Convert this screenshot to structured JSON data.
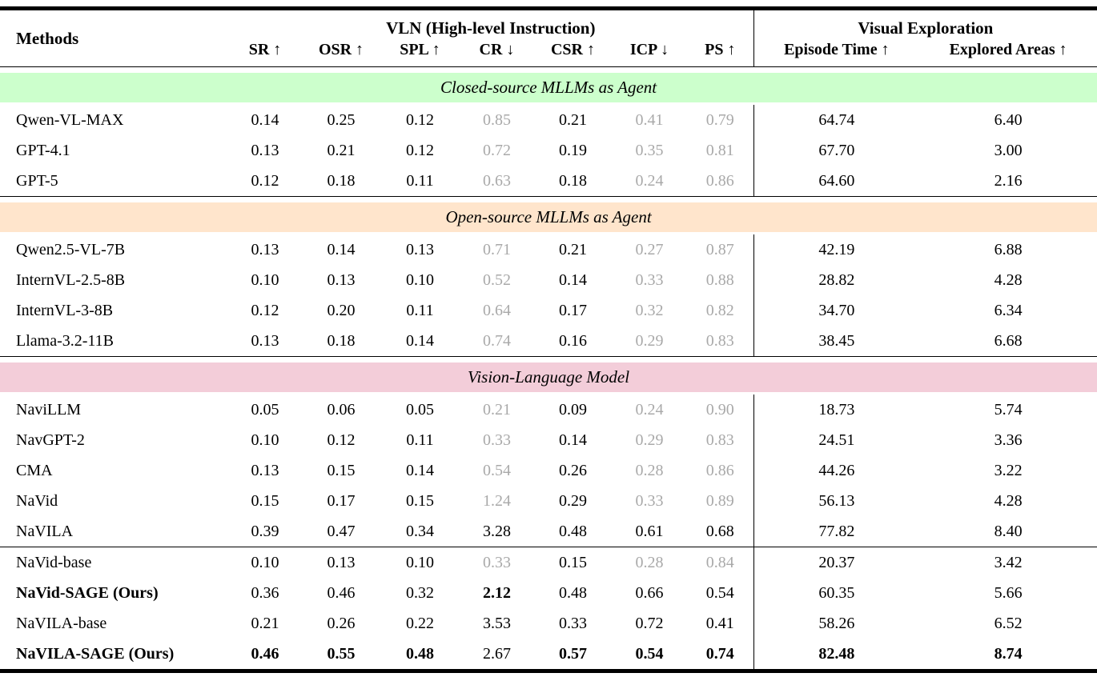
{
  "page": {
    "background": "#ffffff"
  },
  "colors": {
    "muted_value_text": "#a9a9a9",
    "closed_source_banner": "#ccffcc",
    "open_source_banner": "#ffe5cc",
    "vlm_banner": "#f3cdd9",
    "rule": "#000000"
  },
  "table": {
    "methods_header": "Methods",
    "groups": [
      "VLN (High-level Instruction)",
      "Visual Exploration"
    ],
    "columns": [
      {
        "id": "sr",
        "label": "SR ↑"
      },
      {
        "id": "osr",
        "label": "OSR ↑"
      },
      {
        "id": "spl",
        "label": "SPL ↑"
      },
      {
        "id": "cr",
        "label": "CR ↓"
      },
      {
        "id": "csr",
        "label": "CSR ↑"
      },
      {
        "id": "icp",
        "label": "ICP ↓"
      },
      {
        "id": "ps",
        "label": "PS ↑"
      },
      {
        "id": "episode-time",
        "label": "Episode Time ↑"
      },
      {
        "id": "explored-areas",
        "label": "Explored Areas ↑"
      }
    ],
    "sections": [
      {
        "id": "closed-source-mllms",
        "banner": {
          "label": "Closed-source MLLMs as Agent",
          "bg": "#ccffcc"
        },
        "rows": [
          {
            "method": "Qwen-VL-MAX",
            "method_bold": false,
            "values": [
              "0.14",
              "0.25",
              "0.12",
              "0.85",
              "0.21",
              "0.41",
              "0.79",
              "64.74",
              "6.40"
            ],
            "styles": [
              "n",
              "n",
              "n",
              "g",
              "n",
              "g",
              "g",
              "n",
              "n"
            ]
          },
          {
            "method": "GPT-4.1",
            "method_bold": false,
            "values": [
              "0.13",
              "0.21",
              "0.12",
              "0.72",
              "0.19",
              "0.35",
              "0.81",
              "67.70",
              "3.00"
            ],
            "styles": [
              "n",
              "n",
              "n",
              "g",
              "n",
              "g",
              "g",
              "n",
              "n"
            ]
          },
          {
            "method": "GPT-5",
            "method_bold": false,
            "values": [
              "0.12",
              "0.18",
              "0.11",
              "0.63",
              "0.18",
              "0.24",
              "0.86",
              "64.60",
              "2.16"
            ],
            "styles": [
              "n",
              "n",
              "n",
              "g",
              "n",
              "g",
              "g",
              "n",
              "n"
            ]
          }
        ]
      },
      {
        "id": "open-source-mllms",
        "banner": {
          "label": "Open-source MLLMs as Agent",
          "bg": "#ffe5cc"
        },
        "rows": [
          {
            "method": "Qwen2.5-VL-7B",
            "method_bold": false,
            "values": [
              "0.13",
              "0.14",
              "0.13",
              "0.71",
              "0.21",
              "0.27",
              "0.87",
              "42.19",
              "6.88"
            ],
            "styles": [
              "n",
              "n",
              "n",
              "g",
              "n",
              "g",
              "g",
              "n",
              "n"
            ]
          },
          {
            "method": "InternVL-2.5-8B",
            "method_bold": false,
            "values": [
              "0.10",
              "0.13",
              "0.10",
              "0.52",
              "0.14",
              "0.33",
              "0.88",
              "28.82",
              "4.28"
            ],
            "styles": [
              "n",
              "n",
              "n",
              "g",
              "n",
              "g",
              "g",
              "n",
              "n"
            ]
          },
          {
            "method": "InternVL-3-8B",
            "method_bold": false,
            "values": [
              "0.12",
              "0.20",
              "0.11",
              "0.64",
              "0.17",
              "0.32",
              "0.82",
              "34.70",
              "6.34"
            ],
            "styles": [
              "n",
              "n",
              "n",
              "g",
              "n",
              "g",
              "g",
              "n",
              "n"
            ]
          },
          {
            "method": "Llama-3.2-11B",
            "method_bold": false,
            "values": [
              "0.13",
              "0.18",
              "0.14",
              "0.74",
              "0.16",
              "0.29",
              "0.83",
              "38.45",
              "6.68"
            ],
            "styles": [
              "n",
              "n",
              "n",
              "g",
              "n",
              "g",
              "g",
              "n",
              "n"
            ]
          }
        ]
      },
      {
        "id": "vision-language-model",
        "banner": {
          "label": "Vision-Language Model",
          "bg": "#f3cdd9"
        },
        "rows": [
          {
            "method": "NaviLLM",
            "method_bold": false,
            "values": [
              "0.05",
              "0.06",
              "0.05",
              "0.21",
              "0.09",
              "0.24",
              "0.90",
              "18.73",
              "5.74"
            ],
            "styles": [
              "n",
              "n",
              "n",
              "g",
              "n",
              "g",
              "g",
              "n",
              "n"
            ]
          },
          {
            "method": "NavGPT-2",
            "method_bold": false,
            "values": [
              "0.10",
              "0.12",
              "0.11",
              "0.33",
              "0.14",
              "0.29",
              "0.83",
              "24.51",
              "3.36"
            ],
            "styles": [
              "n",
              "n",
              "n",
              "g",
              "n",
              "g",
              "g",
              "n",
              "n"
            ]
          },
          {
            "method": "CMA",
            "method_bold": false,
            "values": [
              "0.13",
              "0.15",
              "0.14",
              "0.54",
              "0.26",
              "0.28",
              "0.86",
              "44.26",
              "3.22"
            ],
            "styles": [
              "n",
              "n",
              "n",
              "g",
              "n",
              "g",
              "g",
              "n",
              "n"
            ]
          },
          {
            "method": "NaVid",
            "method_bold": false,
            "values": [
              "0.15",
              "0.17",
              "0.15",
              "1.24",
              "0.29",
              "0.33",
              "0.89",
              "56.13",
              "4.28"
            ],
            "styles": [
              "n",
              "n",
              "n",
              "g",
              "n",
              "g",
              "g",
              "n",
              "n"
            ]
          },
          {
            "method": "NaVILA",
            "method_bold": false,
            "values": [
              "0.39",
              "0.47",
              "0.34",
              "3.28",
              "0.48",
              "0.61",
              "0.68",
              "77.82",
              "8.40"
            ],
            "styles": [
              "n",
              "n",
              "n",
              "n",
              "n",
              "n",
              "n",
              "n",
              "n"
            ]
          }
        ]
      },
      {
        "id": "sage-comparison",
        "banner": null,
        "rows": [
          {
            "method": "NaVid-base",
            "method_bold": false,
            "values": [
              "0.10",
              "0.13",
              "0.10",
              "0.33",
              "0.15",
              "0.28",
              "0.84",
              "20.37",
              "3.42"
            ],
            "styles": [
              "n",
              "n",
              "n",
              "g",
              "n",
              "g",
              "g",
              "n",
              "n"
            ]
          },
          {
            "method": "NaVid-SAGE (Ours)",
            "method_bold": true,
            "values": [
              "0.36",
              "0.46",
              "0.32",
              "2.12",
              "0.48",
              "0.66",
              "0.54",
              "60.35",
              "5.66"
            ],
            "styles": [
              "n",
              "n",
              "n",
              "b",
              "n",
              "n",
              "n",
              "n",
              "n"
            ]
          },
          {
            "method": "NaVILA-base",
            "method_bold": false,
            "values": [
              "0.21",
              "0.26",
              "0.22",
              "3.53",
              "0.33",
              "0.72",
              "0.41",
              "58.26",
              "6.52"
            ],
            "styles": [
              "n",
              "n",
              "n",
              "n",
              "n",
              "n",
              "n",
              "n",
              "n"
            ]
          },
          {
            "method": "NaVILA-SAGE (Ours)",
            "method_bold": true,
            "values": [
              "0.46",
              "0.55",
              "0.48",
              "2.67",
              "0.57",
              "0.54",
              "0.74",
              "82.48",
              "8.74"
            ],
            "styles": [
              "b",
              "b",
              "b",
              "n",
              "b",
              "b",
              "b",
              "b",
              "b"
            ]
          }
        ]
      }
    ]
  }
}
